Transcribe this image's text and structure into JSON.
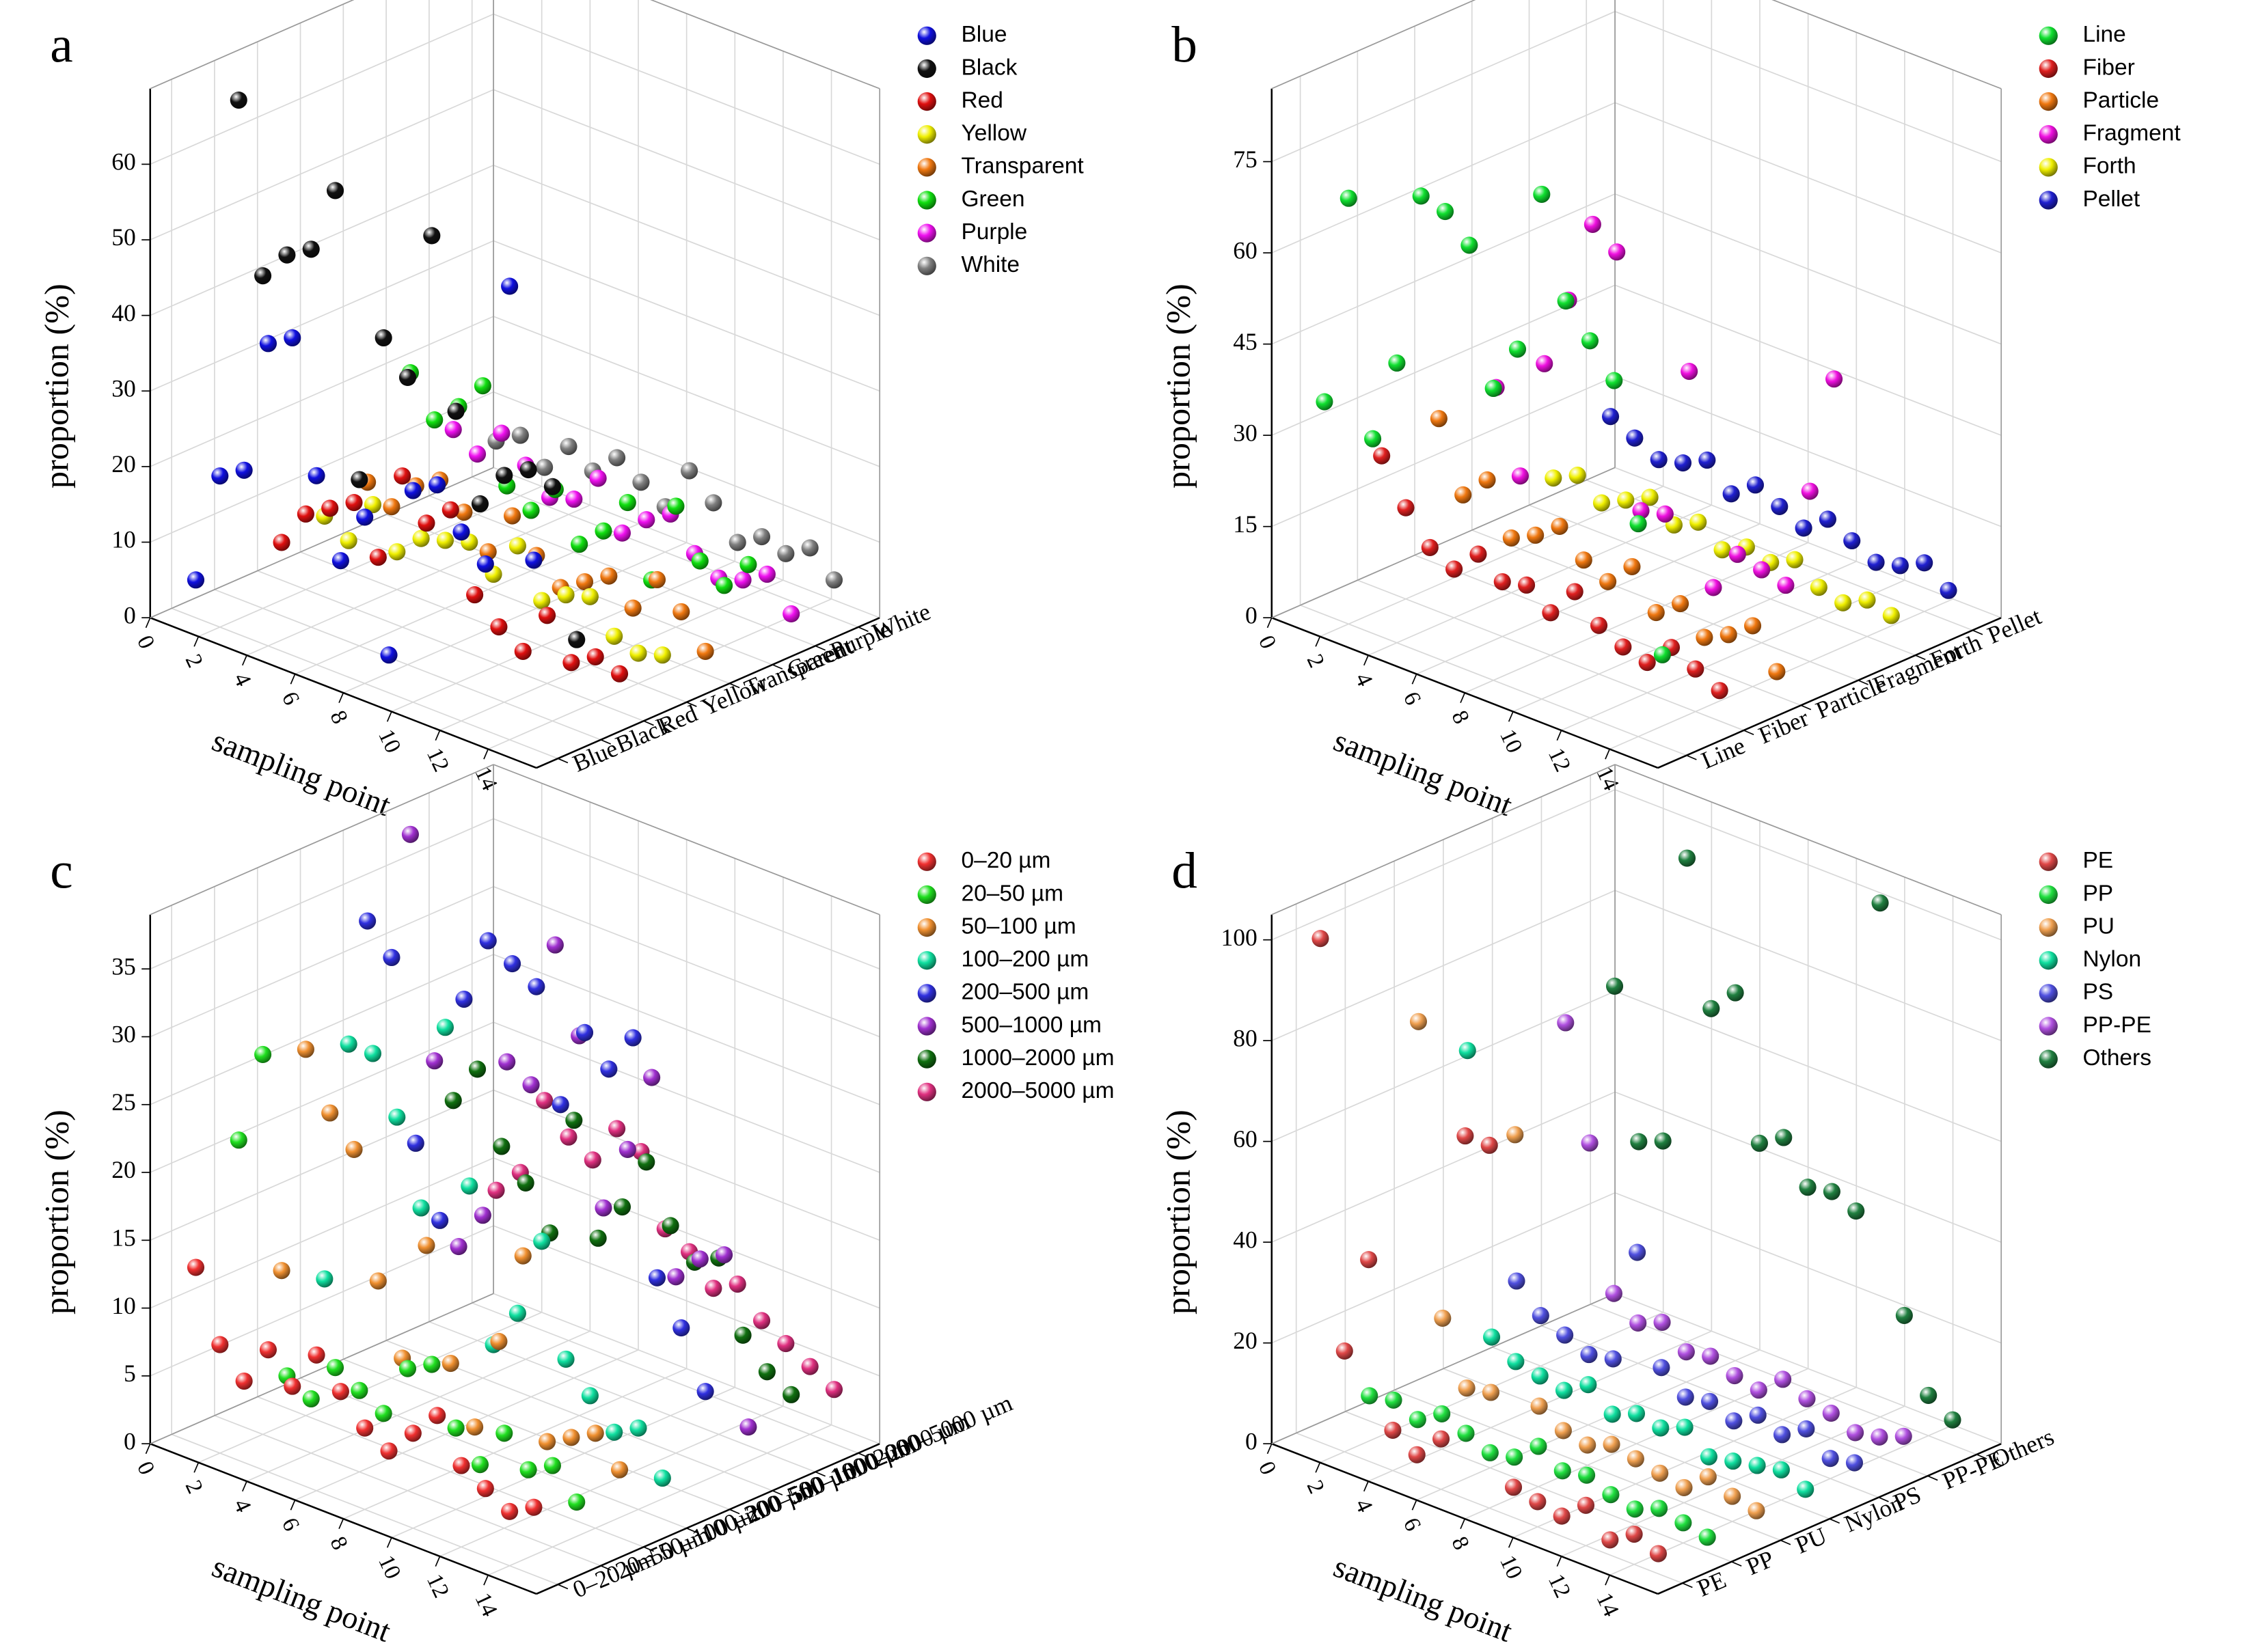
{
  "chart_data": [
    {
      "type": "scatter3d",
      "panel": "a",
      "xlabel": "sampling point",
      "ylabel": "proportion (%)",
      "x": [
        1,
        2,
        3,
        4,
        5,
        6,
        7,
        8,
        9,
        10,
        11,
        12,
        13,
        14,
        15
      ],
      "xlim": [
        0,
        16
      ],
      "xticks": [
        0,
        2,
        4,
        6,
        8,
        10,
        12,
        14
      ],
      "ylim": [
        0,
        70
      ],
      "yticks": [
        0,
        10,
        20,
        30,
        40,
        50,
        60
      ],
      "legend": "upper right",
      "categories": [
        "Blue",
        "Black",
        "Red",
        "Yellow",
        "Transparent",
        "Green",
        "Purple",
        "White"
      ],
      "series": [
        {
          "name": "Blue",
          "color": "#1010e0",
          "values": [
            5,
            20,
            22,
            40,
            42,
            25,
            15,
            22,
            5,
            28,
            30,
            25,
            22,
            60,
            25
          ]
        },
        {
          "name": "Black",
          "color": "#111111",
          "values": [
            66,
            44,
            48,
            50,
            59,
            22,
            42,
            38,
            58,
            36,
            25,
            30,
            32,
            31,
            12
          ]
        },
        {
          "name": "Red",
          "color": "#e01010",
          "values": [
            5,
            10,
            12,
            14,
            8,
            20,
            15,
            18,
            8,
            5,
            3,
            9,
            4,
            6,
            5
          ]
        },
        {
          "name": "Yellow",
          "color": "#f0f000",
          "values": [
            6,
            4,
            10,
            5,
            8,
            9,
            10,
            7,
            12,
            6,
            8,
            9,
            5,
            4,
            5
          ]
        },
        {
          "name": "Transparent",
          "color": "#f07810",
          "values": [
            8,
            6,
            10,
            12,
            9,
            5,
            11,
            7,
            4,
            6,
            8,
            5,
            10,
            7,
            3
          ]
        },
        {
          "name": "Green",
          "color": "#10e010",
          "values": [
            20,
            15,
            18,
            22,
            10,
            8,
            12,
            6,
            9,
            14,
            5,
            16,
            10,
            8,
            12
          ]
        },
        {
          "name": "Purple",
          "color": "#f010f0",
          "values": [
            10,
            8,
            12,
            9,
            6,
            7,
            11,
            5,
            8,
            10,
            6,
            4,
            5,
            7,
            3
          ]
        },
        {
          "name": "White",
          "color": "#808080",
          "values": [
            6,
            8,
            5,
            9,
            7,
            10,
            8,
            6,
            12,
            9,
            5,
            7,
            6,
            8,
            5
          ]
        }
      ]
    },
    {
      "type": "scatter3d",
      "panel": "b",
      "xlabel": "sampling point",
      "ylabel": "proportion (%)",
      "x": [
        1,
        2,
        3,
        4,
        5,
        6,
        7,
        8,
        9,
        10,
        11,
        12,
        13,
        14,
        15
      ],
      "xlim": [
        0,
        16
      ],
      "xticks": [
        0,
        2,
        4,
        6,
        8,
        10,
        12,
        14
      ],
      "ylim": [
        0,
        87
      ],
      "yticks": [
        0,
        15,
        30,
        45,
        60,
        75
      ],
      "legend": "upper right",
      "categories": [
        "Line",
        "Fiber",
        "Particle",
        "Fragment",
        "Forth",
        "Pellet"
      ],
      "series": [
        {
          "name": "Line",
          "color": "#10e030",
          "values": [
            35,
            70,
            32,
            46,
            75,
            74,
            70,
            48,
            56,
            83,
            67,
            62,
            57,
            35,
            15
          ]
        },
        {
          "name": "Fiber",
          "color": "#e02020",
          "values": [
            22,
            15,
            10,
            8,
            12,
            9,
            10,
            7,
            12,
            8,
            6,
            5,
            9,
            7,
            5
          ]
        },
        {
          "name": "Particle",
          "color": "#f07810",
          "values": [
            24,
            13,
            17,
            9,
            11,
            14,
            10,
            8,
            12,
            6,
            9,
            5,
            7,
            10,
            4
          ]
        },
        {
          "name": "Fragment",
          "color": "#f010e0",
          "values": [
            25,
            12,
            32,
            44,
            58,
            55,
            14,
            15,
            40,
            6,
            13,
            12,
            11,
            28,
            48
          ]
        },
        {
          "name": "Forth",
          "color": "#f0f000",
          "values": [
            6,
            8,
            5,
            7,
            9,
            6,
            8,
            5,
            7,
            6,
            8,
            5,
            4,
            6,
            5
          ]
        },
        {
          "name": "Pellet",
          "color": "#2020d0",
          "values": [
            12,
            10,
            8,
            9,
            11,
            7,
            10,
            8,
            6,
            9,
            7,
            5,
            6,
            8,
            5
          ]
        }
      ]
    },
    {
      "type": "scatter3d",
      "panel": "c",
      "xlabel": "sampling point",
      "ylabel": "proportion (%)",
      "x": [
        1,
        2,
        3,
        4,
        5,
        6,
        7,
        8,
        9,
        10,
        11,
        12,
        13,
        14,
        15
      ],
      "xlim": [
        0,
        16
      ],
      "xticks": [
        0,
        2,
        4,
        6,
        8,
        10,
        12,
        14
      ],
      "ylim": [
        0,
        39
      ],
      "yticks": [
        0,
        5,
        10,
        15,
        20,
        25,
        30,
        35
      ],
      "legend": "upper right",
      "categories": [
        "0–20 µm",
        "20–50 µm",
        "50–100 µm",
        "100–200 µm",
        "200–500 µm",
        "500–1000 µm",
        "1000–2000 µm",
        "2000–5000 µm"
      ],
      "series": [
        {
          "name": "0–20 µm",
          "color": "#f03030",
          "values": [
            13,
            8,
            6,
            9,
            7,
            10,
            8,
            6,
            5,
            7,
            9,
            6,
            5,
            4,
            5
          ]
        },
        {
          "name": "20–50  µm",
          "color": "#20e020",
          "values": [
            21,
            28,
            5,
            4,
            7,
            6,
            5,
            9,
            10,
            6,
            4,
            7,
            5,
            6,
            4
          ]
        },
        {
          "name": "50–100 µm",
          "color": "#f09030",
          "values": [
            10,
            27,
            23,
            21,
            12,
            7,
            16,
            8,
            4,
            11,
            18,
            5,
            6,
            7,
            5
          ]
        },
        {
          "name": "100–200 µm",
          "color": "#10e0a0",
          "values": [
            8,
            26,
            26,
            22,
            16,
            30,
            19,
            8,
            11,
            17,
            9,
            7,
            5,
            6,
            3
          ]
        },
        {
          "name": "200–500 µm",
          "color": "#3030e0",
          "values": [
            33,
            31,
            18,
            13,
            30,
            35,
            34,
            33,
            25,
            31,
            29,
            32,
            15,
            12,
            8
          ]
        },
        {
          "name": "500–1000 µm",
          "color": "#a030d0",
          "values": [
            38,
            22,
            9,
            12,
            24,
            23,
            34,
            28,
            16,
            21,
            27,
            13,
            15,
            16,
            4
          ]
        },
        {
          "name": "1000–2000 µm",
          "color": "#107010",
          "values": [
            17,
            20,
            15,
            13,
            10,
            19,
            11,
            14,
            18,
            14,
            12,
            13,
            8,
            6,
            5
          ]
        },
        {
          "name": "2000–5000 µm",
          "color": "#e03080",
          "values": [
            9,
            11,
            17,
            15,
            14,
            17,
            16,
            11,
            10,
            8,
            9,
            7,
            6,
            5,
            4
          ]
        }
      ]
    },
    {
      "type": "scatter3d",
      "panel": "d",
      "xlabel": "sampling point",
      "ylabel": "proportion (%)",
      "x": [
        1,
        2,
        3,
        4,
        5,
        6,
        7,
        8,
        9,
        10,
        11,
        12,
        13,
        14,
        15
      ],
      "xlim": [
        0,
        16
      ],
      "xticks": [
        0,
        2,
        4,
        6,
        8,
        10,
        12,
        14
      ],
      "ylim": [
        0,
        105
      ],
      "yticks": [
        0,
        20,
        40,
        60,
        80,
        100
      ],
      "legend": "upper right",
      "categories": [
        "PE",
        "PP",
        "PU",
        "Nylon",
        "PS",
        "PP-PE",
        "Others"
      ],
      "series": [
        {
          "name": "PE",
          "color": "#e04848",
          "values": [
            100,
            20,
            40,
            8,
            5,
            10,
            72,
            72,
            6,
            5,
            4,
            8,
            3,
            6,
            4
          ]
        },
        {
          "name": "PP",
          "color": "#20e040",
          "values": [
            5,
            6,
            4,
            7,
            5,
            3,
            4,
            8,
            5,
            6,
            4,
            3,
            5,
            4,
            3
          ]
        },
        {
          "name": "PU",
          "color": "#f0a050",
          "values": [
            75,
            18,
            6,
            7,
            60,
            8,
            5,
            4,
            6,
            5,
            4,
            3,
            7,
            5,
            4
          ]
        },
        {
          "name": "Nylon",
          "color": "#10e0a0",
          "values": [
            65,
            10,
            7,
            6,
            5,
            8,
            4,
            6,
            5,
            7,
            3,
            4,
            5,
            6,
            4
          ]
        },
        {
          "name": "PS",
          "color": "#5050e0",
          "values": [
            15,
            10,
            8,
            6,
            7,
            30,
            9,
            5,
            6,
            4,
            7,
            5,
            8,
            4,
            5
          ]
        },
        {
          "name": "PP-PE",
          "color": "#b050e0",
          "values": [
            62,
            40,
            12,
            8,
            10,
            6,
            7,
            5,
            4,
            8,
            6,
            5,
            3,
            4,
            6
          ]
        },
        {
          "name": "Others",
          "color": "#208040",
          "values": [
            65,
            36,
            38,
            96,
            68,
            73,
            45,
            48,
            40,
            41,
            39,
            102,
            22,
            8,
            5
          ]
        }
      ]
    }
  ]
}
